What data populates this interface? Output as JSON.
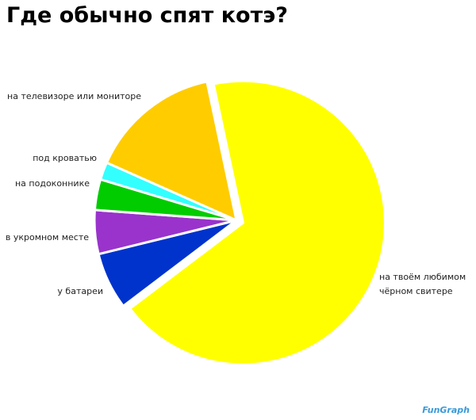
{
  "chart_data": {
    "type": "pie",
    "title": "Где обычно спят котэ?",
    "categories": [
      "на твоём любимом\nчёрном свитере",
      "у батареи",
      "в укромном месте",
      "на подоконнике",
      "под кроватью",
      "на телевизоре или мониторе"
    ],
    "values": [
      68,
      6.5,
      5,
      3.5,
      2,
      15
    ],
    "colors": [
      "#ffff00",
      "#0033cc",
      "#9933cc",
      "#00cc00",
      "#33ffff",
      "#ffcc00"
    ],
    "watermark": "FunGraph"
  }
}
